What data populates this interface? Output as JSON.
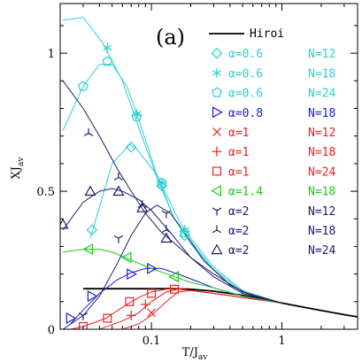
{
  "chart_data": {
    "type": "line",
    "panel_label": "(a)",
    "xlabel": "T/J",
    "xlabel_sub": "av",
    "ylabel": "XJ",
    "ylabel_sub": "av",
    "xscale": "log",
    "xlim": [
      0.02,
      3.8
    ],
    "ylim": [
      0,
      1.18
    ],
    "xticks": [
      {
        "value": 0.1,
        "label": "0.1"
      },
      {
        "value": 1,
        "label": "1"
      }
    ],
    "yticks": [
      {
        "value": 0,
        "label": "0"
      },
      {
        "value": 0.5,
        "label": "0.5"
      },
      {
        "value": 1,
        "label": "1"
      }
    ],
    "legend_position": "top-right",
    "colors": {
      "cyan": "#2ecfd0",
      "blue": "#1a1ae0",
      "navy": "#1c1c6e",
      "red": "#ee2020",
      "green": "#1cc81c",
      "black": "#000000"
    },
    "series": [
      {
        "name": "Hiroi",
        "label_text": "Hiroi",
        "color": "#000000",
        "marker": "line",
        "style": "curve",
        "x": [
          0.03,
          0.06,
          0.1,
          0.15,
          0.2,
          0.3,
          0.5,
          0.7,
          1,
          1.5,
          2,
          3,
          3.8
        ],
        "y": [
          0.147,
          0.147,
          0.147,
          0.147,
          0.145,
          0.138,
          0.123,
          0.11,
          0.095,
          0.079,
          0.068,
          0.053,
          0.045
        ]
      },
      {
        "name": "α=0.6 N=12",
        "alpha_text": "α=0.6",
        "n_text": "N=12",
        "color": "#2ecfd0",
        "marker": "diamond",
        "style": "curve",
        "x": [
          0.034,
          0.05,
          0.068,
          0.078,
          0.11,
          0.16,
          0.2,
          0.3,
          0.5,
          1
        ],
        "y": [
          0.33,
          0.6,
          0.67,
          0.65,
          0.56,
          0.4,
          0.33,
          0.225,
          0.14,
          0.095
        ],
        "marker_x": [
          0.035,
          0.07,
          0.12,
          0.18
        ],
        "marker_y": [
          0.36,
          0.66,
          0.52,
          0.34
        ]
      },
      {
        "name": "α=0.6 N=18",
        "alpha_text": "α=0.6",
        "n_text": "N=18",
        "color": "#2ecfd0",
        "marker": "star",
        "style": "curve",
        "x": [
          0.021,
          0.03,
          0.042,
          0.06,
          0.08,
          0.11,
          0.15,
          0.2,
          0.3,
          0.5,
          1
        ],
        "y": [
          1.12,
          1.13,
          1.04,
          0.9,
          0.73,
          0.55,
          0.4,
          0.31,
          0.215,
          0.135,
          0.093
        ],
        "marker_x": [
          0.046,
          0.077,
          0.12,
          0.18
        ],
        "marker_y": [
          1.02,
          0.78,
          0.53,
          0.36
        ]
      },
      {
        "name": "α=0.6 N=24",
        "alpha_text": "α=0.6",
        "n_text": "N=24",
        "color": "#2ecfd0",
        "marker": "pentagon",
        "style": "curve",
        "x": [
          0.021,
          0.03,
          0.04,
          0.05,
          0.065,
          0.08,
          0.11,
          0.15,
          0.2,
          0.3,
          0.5,
          1
        ],
        "y": [
          0.72,
          0.88,
          0.96,
          0.96,
          0.88,
          0.76,
          0.56,
          0.4,
          0.32,
          0.215,
          0.135,
          0.093
        ],
        "marker_x": [
          0.03,
          0.046,
          0.077,
          0.12,
          0.18
        ],
        "marker_y": [
          0.88,
          0.97,
          0.77,
          0.53,
          0.35
        ]
      },
      {
        "name": "α=0.8 N=18",
        "alpha_text": "α=0.8",
        "n_text": "N=18",
        "color": "#1a1ae0",
        "marker": "triangle-right",
        "style": "curve",
        "x": [
          0.024,
          0.03,
          0.04,
          0.055,
          0.07,
          0.09,
          0.12,
          0.16,
          0.22,
          0.3,
          0.5,
          1
        ],
        "y": [
          0.02,
          0.07,
          0.13,
          0.18,
          0.205,
          0.22,
          0.22,
          0.2,
          0.175,
          0.15,
          0.12,
          0.095
        ],
        "marker_x": [
          0.024,
          0.035,
          0.07,
          0.1
        ],
        "marker_y": [
          0.04,
          0.12,
          0.2,
          0.22
        ]
      },
      {
        "name": "α=1 N=12",
        "alpha_text": "α=1",
        "n_text": "N=12",
        "color": "#ee2020",
        "marker": "cross",
        "style": "curve",
        "x": [
          0.06,
          0.08,
          0.1,
          0.13,
          0.16,
          0.2,
          0.3,
          0.5,
          1
        ],
        "y": [
          0.0,
          0.02,
          0.05,
          0.1,
          0.135,
          0.14,
          0.13,
          0.115,
          0.095
        ],
        "marker_x": [
          0.1
        ],
        "marker_y": [
          0.06
        ]
      },
      {
        "name": "α=1 N=18",
        "alpha_text": "α=1",
        "n_text": "N=18",
        "color": "#ee2020",
        "marker": "plus",
        "style": "curve",
        "x": [
          0.04,
          0.06,
          0.08,
          0.1,
          0.13,
          0.16,
          0.2,
          0.3,
          0.5,
          1
        ],
        "y": [
          0.0,
          0.03,
          0.06,
          0.1,
          0.135,
          0.145,
          0.14,
          0.13,
          0.115,
          0.095
        ],
        "marker_x": [
          0.07,
          0.09
        ],
        "marker_y": [
          0.05,
          0.09
        ]
      },
      {
        "name": "α=1 N=24",
        "alpha_text": "α=1",
        "n_text": "N=24",
        "color": "#ee2020",
        "marker": "square",
        "style": "curve",
        "x": [
          0.024,
          0.03,
          0.045,
          0.06,
          0.08,
          0.1,
          0.13,
          0.16,
          0.2,
          0.3,
          0.5,
          1
        ],
        "y": [
          0.0,
          0.01,
          0.04,
          0.08,
          0.115,
          0.135,
          0.145,
          0.148,
          0.14,
          0.13,
          0.115,
          0.095
        ],
        "marker_x": [
          0.03,
          0.046,
          0.068,
          0.1,
          0.15
        ],
        "marker_y": [
          0.01,
          0.04,
          0.1,
          0.13,
          0.145
        ]
      },
      {
        "name": "α=1.4 N=18",
        "alpha_text": "α=1.4",
        "n_text": "N=18",
        "color": "#1cc81c",
        "marker": "triangle-left",
        "style": "curve",
        "x": [
          0.021,
          0.03,
          0.04,
          0.05,
          0.07,
          0.1,
          0.15,
          0.2,
          0.3,
          0.5,
          1
        ],
        "y": [
          0.28,
          0.29,
          0.29,
          0.28,
          0.25,
          0.22,
          0.19,
          0.17,
          0.15,
          0.12,
          0.095
        ],
        "marker_x": [
          0.033,
          0.065,
          0.15
        ],
        "marker_y": [
          0.29,
          0.26,
          0.19
        ]
      },
      {
        "name": "α=2 N=12",
        "alpha_text": "α=2",
        "n_text": "N=12",
        "color": "#1c1c6e",
        "marker": "tri-down",
        "style": "curve",
        "x": [
          0.021,
          0.03,
          0.04,
          0.055,
          0.07,
          0.09,
          0.11,
          0.14,
          0.18,
          0.25,
          0.4,
          0.6,
          1
        ],
        "y": [
          0.0,
          0.05,
          0.12,
          0.24,
          0.34,
          0.42,
          0.45,
          0.42,
          0.35,
          0.25,
          0.16,
          0.12,
          0.095
        ],
        "marker_x": [
          0.03,
          0.056,
          0.13
        ],
        "marker_y": [
          0.05,
          0.33,
          0.42
        ]
      },
      {
        "name": "α=2 N=18",
        "alpha_text": "α=2",
        "n_text": "N=18",
        "color": "#1c1c6e",
        "marker": "tri-up",
        "style": "curve",
        "x": [
          0.021,
          0.03,
          0.04,
          0.055,
          0.07,
          0.09,
          0.12,
          0.16,
          0.2,
          0.3,
          0.5,
          1
        ],
        "y": [
          0.9,
          0.8,
          0.7,
          0.58,
          0.5,
          0.42,
          0.35,
          0.3,
          0.26,
          0.2,
          0.135,
          0.095
        ],
        "marker_x": [
          0.033,
          0.056,
          0.085,
          0.13
        ],
        "marker_y": [
          0.71,
          0.55,
          0.45,
          0.36
        ]
      },
      {
        "name": "α=2 N=24",
        "alpha_text": "α=2",
        "n_text": "N=24",
        "color": "#1c1c6e",
        "marker": "triangle-up",
        "style": "curve",
        "x": [
          0.021,
          0.03,
          0.04,
          0.05,
          0.06,
          0.08,
          0.1,
          0.14,
          0.2,
          0.3,
          0.5,
          1
        ],
        "y": [
          0.36,
          0.46,
          0.5,
          0.51,
          0.5,
          0.47,
          0.43,
          0.35,
          0.26,
          0.19,
          0.13,
          0.095
        ],
        "marker_x": [
          0.021,
          0.034,
          0.056,
          0.085,
          0.13
        ],
        "marker_y": [
          0.38,
          0.5,
          0.5,
          0.44,
          0.33
        ]
      }
    ]
  }
}
